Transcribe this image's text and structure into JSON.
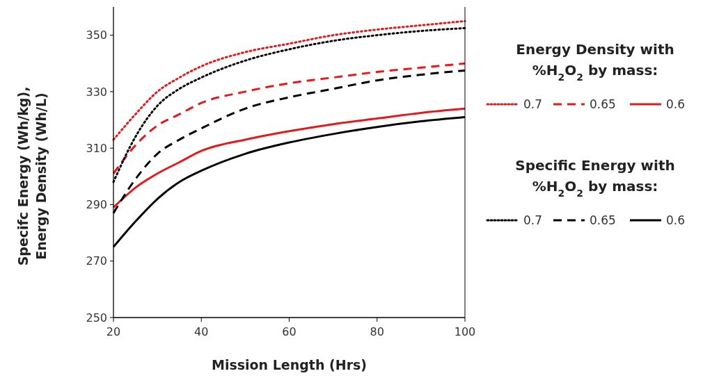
{
  "chart_data": {
    "type": "line",
    "xlabel": "Mission Length (Hrs)",
    "ylabel": "Specifc Energy (Wh/kg), Energy Density (Wh/L)",
    "legend_title": "Energy Density with %H$_{2}$O$_{2}$ by mass:",
    "annotations": [
      "Specific  Energy with %H$_{2}$O$_{2}$ by mass:"
    ],
    "legend": "right",
    "grid": false,
    "x": [
      20,
      25,
      30,
      35,
      40,
      50,
      60,
      70,
      80,
      90,
      100
    ],
    "xlim": [
      20,
      100
    ],
    "xticks": [
      20,
      40,
      60,
      80,
      100
    ],
    "ylim": [
      250,
      360
    ],
    "yticks": [
      250,
      270,
      290,
      310,
      330,
      350
    ],
    "series": [
      {
        "name": "0.7",
        "color": "#e31a1c",
        "line_style": "dotted",
        "values": [
          313,
          322,
          330,
          335,
          339,
          344,
          347,
          350,
          352,
          353.5,
          355
        ]
      },
      {
        "name": "0.65",
        "color": "#e31a1c",
        "line_style": "dashed",
        "values": [
          301,
          311,
          318,
          322,
          326,
          330,
          333,
          335,
          337,
          338.5,
          340
        ]
      },
      {
        "name": "0.6",
        "color": "#e31a1c",
        "line_style": "solid",
        "values": [
          289,
          296,
          301,
          305,
          309,
          313,
          316,
          318.5,
          320.5,
          322.5,
          324
        ]
      },
      {
        "name": "0.7",
        "color": "#000000",
        "line_style": "dotted",
        "values": [
          298,
          314,
          325,
          331,
          335,
          341,
          345,
          348,
          350,
          351.5,
          352.5
        ]
      },
      {
        "name": "0.65",
        "color": "#000000",
        "line_style": "dashed",
        "values": [
          287,
          299,
          308,
          313,
          317,
          324,
          328,
          331,
          334,
          336,
          337.5
        ]
      },
      {
        "name": "0.6",
        "color": "#000000",
        "line_style": "solid",
        "values": [
          275,
          284,
          292,
          298,
          302,
          308,
          312,
          315,
          317.5,
          319.5,
          321
        ]
      }
    ]
  }
}
